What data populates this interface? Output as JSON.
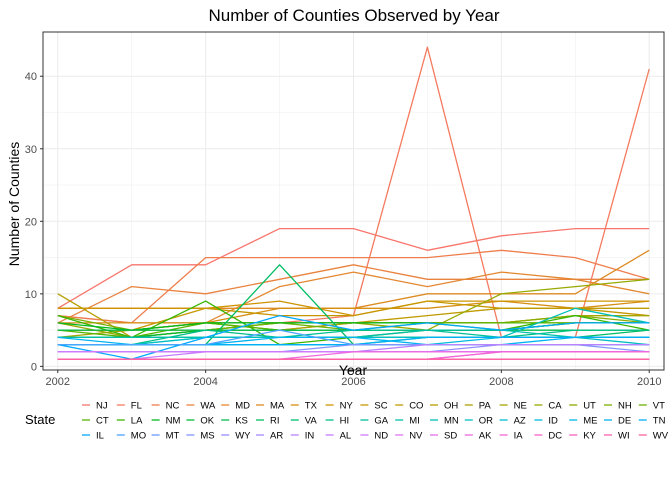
{
  "chart_data": {
    "type": "line",
    "title": "Number of Counties Observed by Year",
    "xlabel": "Year",
    "ylabel": "Number of Counties",
    "legend_title": "State",
    "legend_placement": "bottom",
    "grid": true,
    "xlim": [
      2001.8,
      2010.2
    ],
    "ylim": [
      -0.5,
      46.1
    ],
    "x_ticks": [
      2002,
      2004,
      2006,
      2008,
      2010
    ],
    "x_tick_labels": [
      "2002",
      "2004",
      "2006",
      "2008",
      "2010"
    ],
    "y_ticks": [
      0,
      10,
      20,
      30,
      40
    ],
    "y_tick_labels": [
      "0",
      "10",
      "20",
      "30",
      "40"
    ],
    "x": [
      2002,
      2003,
      2004,
      2005,
      2006,
      2007,
      2008,
      2009,
      2010
    ],
    "series": [
      {
        "name": "NJ",
        "color": "#F8766D",
        "values": [
          8,
          14,
          14,
          19,
          19,
          16,
          18,
          19,
          19
        ]
      },
      {
        "name": "FL",
        "color": "#F47A5E",
        "values": [
          7,
          6,
          6,
          6,
          7,
          44,
          4,
          4,
          41
        ]
      },
      {
        "name": "NC",
        "color": "#EF7E4F",
        "values": [
          7,
          6,
          15,
          15,
          15,
          15,
          16,
          15,
          12
        ]
      },
      {
        "name": "WA",
        "color": "#E9833F",
        "values": [
          6,
          11,
          10,
          12,
          14,
          12,
          12,
          12,
          12
        ]
      },
      {
        "name": "MD",
        "color": "#E38731",
        "values": [
          5,
          5,
          6,
          11,
          13,
          11,
          13,
          12,
          10
        ]
      },
      {
        "name": "MA",
        "color": "#DD8B22",
        "values": [
          8,
          8,
          8,
          8,
          8,
          10,
          10,
          10,
          16
        ]
      },
      {
        "name": "TX",
        "color": "#D68F13",
        "values": [
          6,
          6,
          6,
          8,
          8,
          8,
          9,
          8,
          9
        ]
      },
      {
        "name": "NY",
        "color": "#CF9300",
        "values": [
          8,
          8,
          8,
          9,
          7,
          9,
          9,
          9,
          9
        ]
      },
      {
        "name": "SC",
        "color": "#C79700",
        "values": [
          5,
          5,
          8,
          7,
          7,
          9,
          8,
          8,
          7
        ]
      },
      {
        "name": "CO",
        "color": "#BF9A00",
        "values": [
          5,
          5,
          6,
          6,
          6,
          7,
          8,
          8,
          8
        ]
      },
      {
        "name": "OH",
        "color": "#B69E00",
        "values": [
          10,
          4,
          5,
          5,
          6,
          6,
          6,
          7,
          7
        ]
      },
      {
        "name": "PA",
        "color": "#ACA100",
        "values": [
          5,
          5,
          5,
          5,
          6,
          6,
          6,
          6,
          6
        ]
      },
      {
        "name": "NE",
        "color": "#A3A500",
        "values": [
          4,
          5,
          5,
          6,
          6,
          6,
          6,
          7,
          7
        ]
      },
      {
        "name": "CA",
        "color": "#97A900",
        "values": [
          6,
          4,
          5,
          6,
          6,
          5,
          10,
          11,
          12
        ]
      },
      {
        "name": "UT",
        "color": "#8BAB00",
        "values": [
          5,
          5,
          6,
          6,
          6,
          6,
          6,
          7,
          6
        ]
      },
      {
        "name": "NH",
        "color": "#7CAE00",
        "values": [
          7,
          5,
          6,
          5,
          5,
          5,
          5,
          6,
          6
        ]
      },
      {
        "name": "VT",
        "color": "#6BB100",
        "values": [
          4,
          4,
          5,
          6,
          5,
          5,
          5,
          6,
          6
        ]
      },
      {
        "name": "CT",
        "color": "#56B400",
        "values": [
          5,
          4,
          6,
          5,
          5,
          6,
          6,
          6,
          6
        ]
      },
      {
        "name": "LA",
        "color": "#38B600",
        "values": [
          7,
          4,
          9,
          3,
          4,
          5,
          5,
          7,
          5
        ]
      },
      {
        "name": "NM",
        "color": "#00B81C",
        "values": [
          6,
          5,
          6,
          6,
          6,
          6,
          5,
          6,
          6
        ]
      },
      {
        "name": "OK",
        "color": "#00BA38",
        "values": [
          4,
          4,
          5,
          5,
          5,
          5,
          5,
          5,
          5
        ]
      },
      {
        "name": "KS",
        "color": "#00BB4E",
        "values": [
          5,
          5,
          5,
          5,
          5,
          5,
          5,
          5,
          5
        ]
      },
      {
        "name": "RI",
        "color": "#00BD62",
        "values": [
          3,
          3,
          3,
          14,
          3,
          4,
          4,
          4,
          5
        ]
      },
      {
        "name": "VA",
        "color": "#00BE74",
        "values": [
          4,
          4,
          4,
          4,
          4,
          4,
          4,
          4,
          4
        ]
      },
      {
        "name": "HI",
        "color": "#00BF86",
        "values": [
          3,
          3,
          5,
          4,
          4,
          4,
          4,
          5,
          5
        ]
      },
      {
        "name": "GA",
        "color": "#00C097",
        "values": [
          4,
          4,
          4,
          4,
          5,
          5,
          4,
          4,
          4
        ]
      },
      {
        "name": "MI",
        "color": "#00C0A7",
        "values": [
          4,
          4,
          4,
          4,
          4,
          5,
          5,
          4,
          4
        ]
      },
      {
        "name": "MN",
        "color": "#00C0B6",
        "values": [
          3,
          3,
          4,
          4,
          4,
          4,
          4,
          8,
          6
        ]
      },
      {
        "name": "OR",
        "color": "#00BFC4",
        "values": [
          3,
          3,
          4,
          4,
          4,
          4,
          4,
          4,
          3
        ]
      },
      {
        "name": "AZ",
        "color": "#00BDD2",
        "values": [
          3,
          3,
          3,
          3,
          3,
          3,
          3,
          3,
          3
        ]
      },
      {
        "name": "ID",
        "color": "#00BBDF",
        "values": [
          3,
          3,
          3,
          3,
          3,
          3,
          4,
          4,
          4
        ]
      },
      {
        "name": "ME",
        "color": "#00B8EA",
        "values": [
          3,
          3,
          3,
          3,
          3,
          3,
          3,
          3,
          3
        ]
      },
      {
        "name": "DE",
        "color": "#00B4F0",
        "values": [
          4,
          3,
          3,
          4,
          4,
          3,
          3,
          4,
          4
        ]
      },
      {
        "name": "TN",
        "color": "#00AFF8",
        "values": [
          3,
          3,
          3,
          3,
          3,
          4,
          4,
          4,
          4
        ]
      },
      {
        "name": "IL",
        "color": "#00A9FF",
        "values": [
          3,
          1,
          4,
          7,
          5,
          6,
          5,
          6,
          6
        ]
      },
      {
        "name": "MO",
        "color": "#4BA2FF",
        "values": [
          3,
          3,
          3,
          5,
          3,
          3,
          3,
          3,
          3
        ]
      },
      {
        "name": "MT",
        "color": "#679AFF",
        "values": [
          2,
          2,
          2,
          2,
          2,
          2,
          2,
          2,
          2
        ]
      },
      {
        "name": "MS",
        "color": "#8294FF",
        "values": [
          2,
          2,
          2,
          2,
          3,
          3,
          3,
          3,
          2
        ]
      },
      {
        "name": "WY",
        "color": "#968DFF",
        "values": [
          2,
          2,
          2,
          2,
          2,
          2,
          3,
          3,
          3
        ]
      },
      {
        "name": "AR",
        "color": "#A88AFF",
        "values": [
          2,
          2,
          2,
          2,
          2,
          2,
          2,
          2,
          2
        ]
      },
      {
        "name": "IN",
        "color": "#B983FF",
        "values": [
          2,
          2,
          2,
          2,
          2,
          3,
          3,
          3,
          3
        ]
      },
      {
        "name": "AL",
        "color": "#C77CFF",
        "values": [
          1,
          1,
          2,
          2,
          2,
          2,
          2,
          2,
          2
        ]
      },
      {
        "name": "ND",
        "color": "#D378FE",
        "values": [
          2,
          2,
          2,
          2,
          2,
          2,
          2,
          2,
          2
        ]
      },
      {
        "name": "NV",
        "color": "#DC72F5",
        "values": [
          1,
          1,
          1,
          1,
          1,
          1,
          2,
          2,
          2
        ]
      },
      {
        "name": "SD",
        "color": "#E56DEC",
        "values": [
          1,
          1,
          1,
          1,
          1,
          1,
          1,
          1,
          1
        ]
      },
      {
        "name": "AK",
        "color": "#ED68E1",
        "values": [
          1,
          1,
          1,
          1,
          2,
          2,
          2,
          2,
          2
        ]
      },
      {
        "name": "IA",
        "color": "#F364D6",
        "values": [
          1,
          1,
          1,
          1,
          1,
          1,
          2,
          2,
          2
        ]
      },
      {
        "name": "DC",
        "color": "#F863C9",
        "values": [
          1,
          1,
          1,
          1,
          1,
          1,
          1,
          1,
          1
        ]
      },
      {
        "name": "KY",
        "color": "#FB61BC",
        "values": [
          1,
          1,
          1,
          1,
          1,
          1,
          1,
          1,
          1
        ]
      },
      {
        "name": "WI",
        "color": "#FD61AD",
        "values": [
          1,
          1,
          1,
          1,
          1,
          1,
          1,
          1,
          1
        ]
      },
      {
        "name": "WV",
        "color": "#FF629D",
        "values": [
          1,
          1,
          1,
          1,
          1,
          1,
          1,
          1,
          1
        ]
      }
    ]
  }
}
